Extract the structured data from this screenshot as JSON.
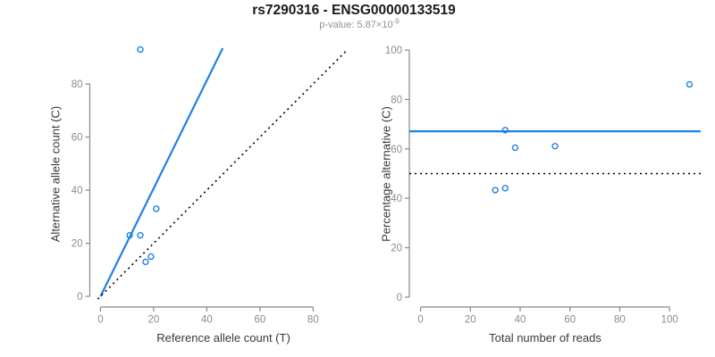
{
  "figure": {
    "title": "rs7290316 - ENSG00000133519",
    "subtitle_prefix": "p-value: 5.87×10",
    "subtitle_exponent": "-9"
  },
  "colors": {
    "accent_blue": "#1E82E0",
    "line_black": "#000000",
    "axis_gray": "#878787",
    "tick_label_gray": "#8B8B8B",
    "axis_title_color": "#383838",
    "title_color": "#1A1A1A",
    "subtitle_gray": "#909090"
  },
  "chart_data": [
    {
      "type": "scatter",
      "panel": "left",
      "xlabel": "Reference allele count (T)",
      "ylabel": "Alternative allele count (C)",
      "xticks": [
        0,
        20,
        40,
        60,
        80
      ],
      "yticks": [
        0,
        20,
        40,
        60,
        80
      ],
      "xlim": [
        -4,
        93
      ],
      "ylim": [
        -4,
        96.5
      ],
      "grid": false,
      "legend": null,
      "points": [
        {
          "x": 11,
          "y": 23
        },
        {
          "x": 15,
          "y": 23
        },
        {
          "x": 17,
          "y": 13
        },
        {
          "x": 19,
          "y": 15
        },
        {
          "x": 21,
          "y": 33
        },
        {
          "x": 15,
          "y": 93
        }
      ],
      "lines": [
        {
          "name": "fitted-allelic-ratio-line",
          "style": "solid",
          "color": "accent_blue",
          "x1": 0,
          "y1": 0,
          "x2": 46,
          "y2": 93.5
        },
        {
          "name": "identity-line",
          "style": "dotted",
          "color": "line_black",
          "x1": -1,
          "y1": -1,
          "x2": 92.3,
          "y2": 92.3
        }
      ]
    },
    {
      "type": "scatter",
      "panel": "right",
      "xlabel": "Total number of reads",
      "ylabel": "Percentage alternative (C)",
      "xticks": [
        0,
        20,
        40,
        60,
        80,
        100
      ],
      "yticks": [
        0,
        20,
        40,
        60,
        80,
        100
      ],
      "xlim": [
        -4.5,
        112.5
      ],
      "ylim": [
        -4,
        104
      ],
      "grid": false,
      "legend": null,
      "points": [
        {
          "x": 30,
          "y": 43.3
        },
        {
          "x": 34,
          "y": 44.1
        },
        {
          "x": 34,
          "y": 67.6
        },
        {
          "x": 38,
          "y": 60.5
        },
        {
          "x": 54,
          "y": 61.1
        },
        {
          "x": 108,
          "y": 86.1
        }
      ],
      "lines": [
        {
          "name": "mean-alternative-fraction-line",
          "style": "solid",
          "color": "accent_blue",
          "hline": 67.1
        },
        {
          "name": "null-expectation-line",
          "style": "dotted",
          "color": "line_black",
          "hline": 50
        }
      ]
    }
  ]
}
